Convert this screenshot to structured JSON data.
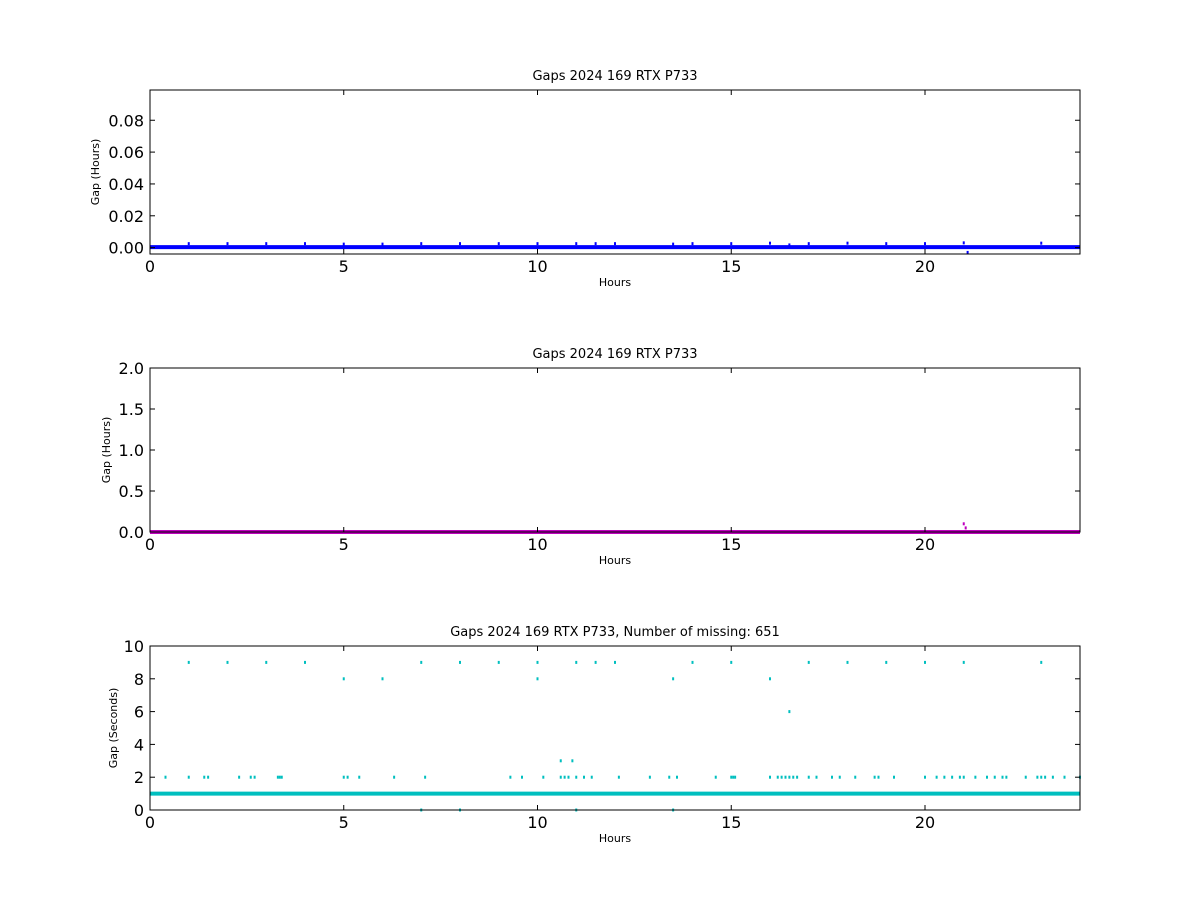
{
  "chart_data": [
    {
      "type": "scatter",
      "title": "Gaps 2024 169 RTX  P733",
      "xlabel": "Hours",
      "ylabel": "Gap (Hours)",
      "xlim": [
        0,
        24
      ],
      "ylim": [
        -0.004,
        0.099
      ],
      "xticks": [
        0,
        5,
        10,
        15,
        20
      ],
      "xtick_labels": [
        "0",
        "5",
        "10",
        "15",
        "20"
      ],
      "yticks": [
        0.0,
        0.02,
        0.04,
        0.06,
        0.08
      ],
      "ytick_labels": [
        "0.00",
        "0.02",
        "0.04",
        "0.06",
        "0.08"
      ],
      "grid": false,
      "color": "#0000ff",
      "baseline": {
        "from": 0,
        "to": 24,
        "value": 0.0003
      },
      "series": [
        {
          "x": [
            1.0,
            2.0,
            3.0,
            4.0,
            5.0,
            6.0,
            7.0,
            8.0,
            9.0,
            10.0,
            11.0,
            11.5,
            12.0,
            13.5,
            14.0,
            15.0,
            16.0,
            16.5,
            17.0,
            18.0,
            19.0,
            20.0,
            21.0,
            21.1,
            23.0
          ],
          "y": [
            0.0025,
            0.0025,
            0.0025,
            0.0025,
            0.0022,
            0.0022,
            0.0025,
            0.0025,
            0.0025,
            0.0025,
            0.0025,
            0.0025,
            0.0025,
            0.0022,
            0.0025,
            0.0025,
            0.0028,
            0.0017,
            0.0025,
            0.0028,
            0.0025,
            0.0025,
            0.003,
            -0.003,
            0.0028
          ]
        }
      ]
    },
    {
      "type": "scatter",
      "title": "Gaps 2024 169 RTX  P733",
      "xlabel": "Hours",
      "ylabel": "Gap (Hours)",
      "xlim": [
        0,
        24
      ],
      "ylim": [
        0,
        2.0
      ],
      "xticks": [
        0,
        5,
        10,
        15,
        20
      ],
      "xtick_labels": [
        "0",
        "5",
        "10",
        "15",
        "20"
      ],
      "yticks": [
        0.0,
        0.5,
        1.0,
        1.5,
        2.0
      ],
      "ytick_labels": [
        "0.0",
        "0.5",
        "1.0",
        "1.5",
        "2.0"
      ],
      "grid": false,
      "color": "#bf00bf",
      "baseline": {
        "from": 0,
        "to": 24,
        "value": 0.0003
      },
      "series": [
        {
          "x": [
            21.0,
            21.05
          ],
          "y": [
            0.1,
            0.05
          ]
        }
      ]
    },
    {
      "type": "scatter",
      "title": "Gaps 2024 169 RTX  P733, Number of missing: 651",
      "xlabel": "Hours",
      "ylabel": "Gap (Seconds)",
      "xlim": [
        0,
        24
      ],
      "ylim": [
        0,
        10
      ],
      "xticks": [
        0,
        5,
        10,
        15,
        20
      ],
      "xtick_labels": [
        "0",
        "5",
        "10",
        "15",
        "20"
      ],
      "yticks": [
        0,
        2,
        4,
        6,
        8,
        10
      ],
      "ytick_labels": [
        "0",
        "2",
        "4",
        "6",
        "8",
        "10"
      ],
      "grid": false,
      "color": "#00bfbf",
      "baseline": {
        "from": 0,
        "to": 24,
        "value": 1
      },
      "series": [
        {
          "x": [
            1.0,
            2.0,
            3.0,
            4.0,
            7.0,
            8.0,
            9.0,
            10.0,
            11.0,
            11.5,
            12.0,
            14.0,
            15.0,
            17.0,
            18.0,
            19.0,
            20.0,
            21.0,
            23.0,
            5.0,
            6.0,
            10.0,
            13.5,
            16.0,
            16.5,
            10.6,
            10.9,
            0.4,
            1.0,
            1.4,
            1.5,
            2.3,
            2.6,
            2.7,
            3.3,
            3.35,
            3.4,
            5.0,
            5.1,
            5.4,
            6.3,
            7.1,
            9.3,
            9.6,
            10.15,
            10.6,
            10.7,
            10.8,
            11.0,
            11.2,
            11.4,
            12.1,
            12.9,
            13.4,
            13.6,
            14.6,
            15.0,
            15.05,
            15.1,
            16.0,
            16.2,
            16.3,
            16.4,
            16.5,
            16.6,
            16.7,
            17.0,
            17.2,
            17.6,
            17.8,
            18.2,
            18.7,
            18.8,
            19.2,
            20.0,
            20.3,
            20.5,
            20.7,
            20.9,
            21.0,
            21.3,
            21.6,
            21.8,
            22.0,
            22.1,
            22.6,
            22.9,
            23.0,
            23.1,
            23.3,
            23.6,
            24.0,
            7.0,
            8.0,
            11.0,
            13.5
          ],
          "y": [
            9,
            9,
            9,
            9,
            9,
            9,
            9,
            9,
            9,
            9,
            9,
            9,
            9,
            9,
            9,
            9,
            9,
            9,
            9,
            8,
            8,
            8,
            8,
            8,
            6,
            3,
            3,
            2,
            2,
            2,
            2,
            2,
            2,
            2,
            2,
            2,
            2,
            2,
            2,
            2,
            2,
            2,
            2,
            2,
            2,
            2,
            2,
            2,
            2,
            2,
            2,
            2,
            2,
            2,
            2,
            2,
            2,
            2,
            2,
            2,
            2,
            2,
            2,
            2,
            2,
            2,
            2,
            2,
            2,
            2,
            2,
            2,
            2,
            2,
            2,
            2,
            2,
            2,
            2,
            2,
            2,
            2,
            2,
            2,
            2,
            2,
            2,
            2,
            2,
            2,
            2,
            2,
            0,
            0,
            0,
            0
          ]
        }
      ]
    }
  ]
}
